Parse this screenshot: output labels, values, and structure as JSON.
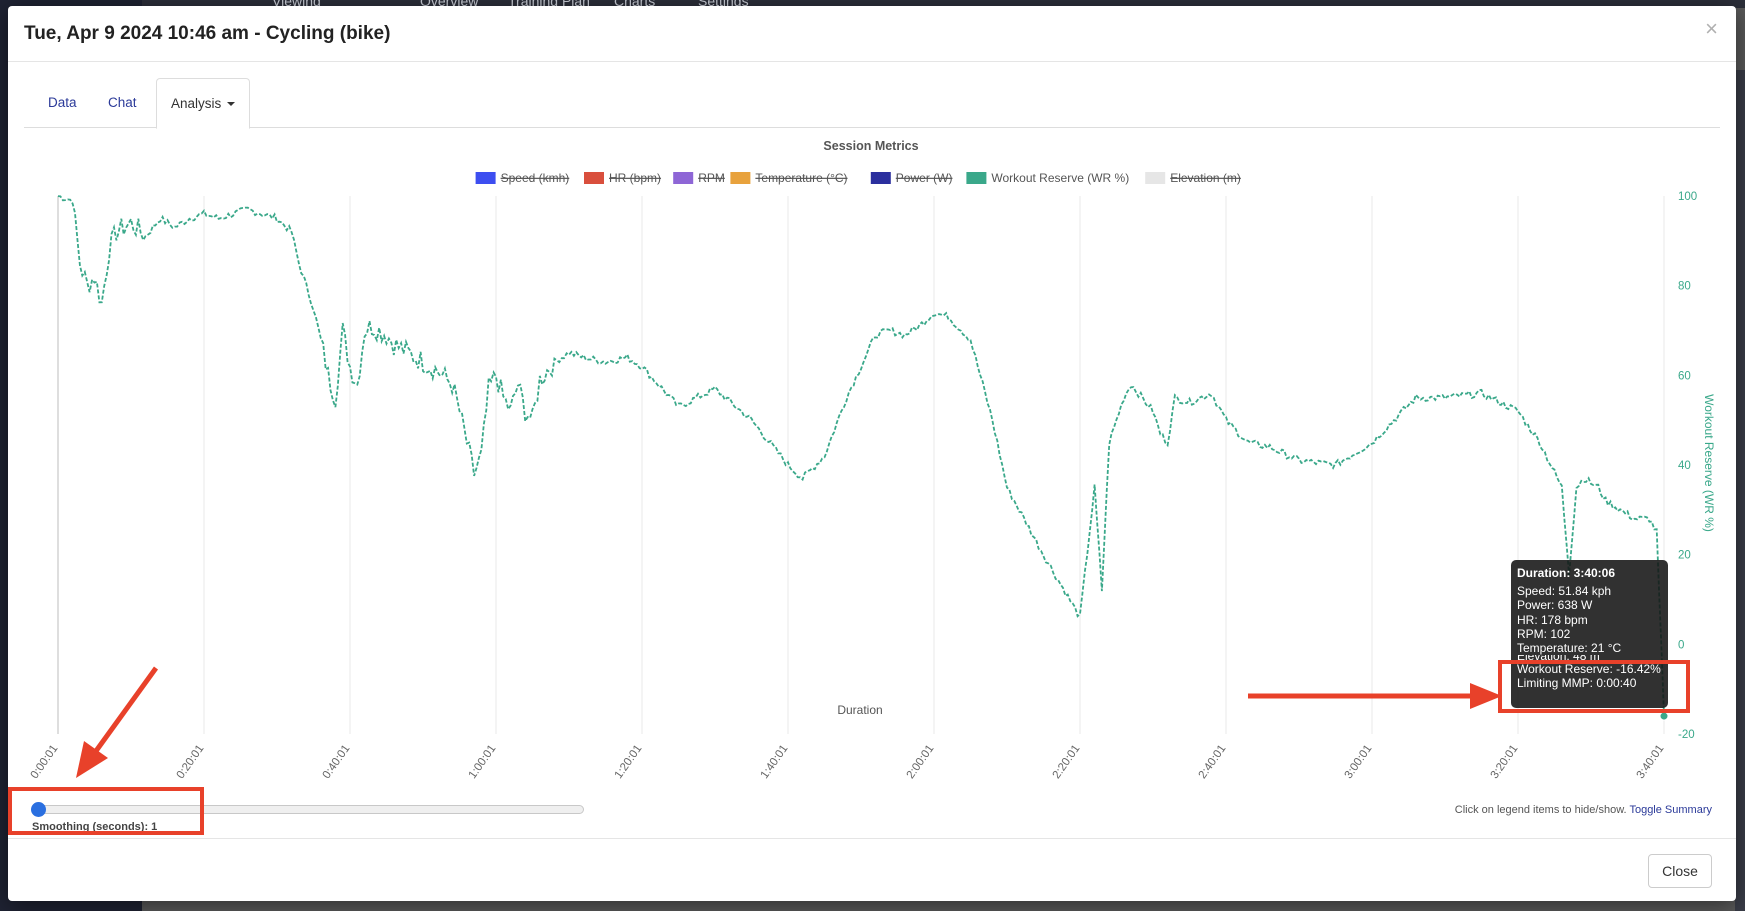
{
  "background_nav": [
    "Viewing",
    "Overview",
    "Training Plan",
    "Charts",
    "Settings"
  ],
  "modal": {
    "title": "Tue, Apr 9 2024 10:46 am - Cycling (bike)",
    "close_x": "×",
    "close_button": "Close"
  },
  "tabs": [
    {
      "label": "Data"
    },
    {
      "label": "Chat"
    },
    {
      "label": "Analysis"
    }
  ],
  "colors": {
    "workout_reserve": "#3aa88a",
    "annotation_red": "#e8412a",
    "link": "#2b3a99"
  },
  "chart_data": {
    "type": "line",
    "title": "Session Metrics",
    "xlabel": "Duration",
    "ylabel": "Workout Reserve (WR %)",
    "ylim": [
      -20,
      100
    ],
    "y_ticks": [
      "100",
      "80",
      "60",
      "40",
      "20",
      "0",
      "-20"
    ],
    "x_ticks": [
      "0:00:01",
      "0:20:01",
      "0:40:01",
      "1:00:01",
      "1:20:01",
      "1:40:01",
      "2:00:01",
      "2:20:01",
      "2:40:01",
      "3:00:01",
      "3:20:01",
      "3:40:01"
    ],
    "grid": "vertical",
    "legend_position": "top",
    "legend": [
      {
        "name": "Speed (kmh)",
        "color": "#3d4ef0",
        "hidden": true
      },
      {
        "name": "HR (bpm)",
        "color": "#d94f3d",
        "hidden": true
      },
      {
        "name": "RPM",
        "color": "#8e66d6",
        "hidden": true
      },
      {
        "name": "Temperature (°C)",
        "color": "#e8a23d",
        "hidden": true
      },
      {
        "name": "Power (W)",
        "color": "#2b2f9e",
        "hidden": true
      },
      {
        "name": "Workout Reserve (WR %)",
        "color": "#3aa88a",
        "hidden": false
      },
      {
        "name": "Elevation (m)",
        "color": "#e6e6e6",
        "hidden": true
      }
    ],
    "series": [
      {
        "name": "Workout Reserve (WR %)",
        "x_minutes": [
          0,
          2,
          3,
          4,
          5,
          6,
          7,
          8,
          10,
          12,
          14,
          16,
          18,
          20,
          22,
          24,
          26,
          28,
          30,
          32,
          33,
          34,
          35,
          36,
          37,
          38,
          39,
          40,
          41,
          42,
          43,
          44,
          45,
          46,
          48,
          50,
          52,
          54,
          55,
          56,
          57,
          58,
          59,
          60,
          61,
          62,
          63,
          64,
          65,
          66,
          68,
          70,
          72,
          75,
          78,
          80,
          85,
          90,
          95,
          100,
          102,
          105,
          108,
          110,
          112,
          114,
          116,
          118,
          120,
          122,
          125,
          128,
          130,
          135,
          140,
          142,
          143,
          144,
          145,
          146,
          147,
          148,
          149,
          150,
          151,
          152,
          153,
          155,
          158,
          160,
          163,
          166,
          170,
          175,
          180,
          183,
          186,
          190,
          195,
          200,
          203,
          206,
          207,
          208,
          209,
          210,
          211,
          212,
          214,
          216,
          218,
          219,
          220
        ],
        "y": [
          100,
          99,
          85,
          80,
          82,
          76,
          88,
          92,
          94,
          91,
          95,
          93,
          95,
          96,
          95,
          96,
          97,
          96,
          95,
          92,
          85,
          80,
          75,
          68,
          60,
          55,
          70,
          62,
          58,
          70,
          71,
          70,
          69,
          67,
          65,
          63,
          61,
          58,
          52,
          45,
          38,
          42,
          57,
          60,
          55,
          52,
          58,
          52,
          50,
          59,
          63,
          65,
          64,
          63,
          64,
          62,
          53,
          57,
          50,
          40,
          37,
          42,
          55,
          62,
          69,
          70,
          69,
          71,
          74,
          73,
          68,
          50,
          35,
          20,
          6,
          35,
          12,
          45,
          50,
          55,
          58,
          56,
          54,
          52,
          47,
          45,
          55,
          54,
          56,
          50,
          45,
          44,
          41,
          40,
          45,
          50,
          55,
          55,
          56,
          52,
          45,
          35,
          16,
          35,
          37,
          36,
          35,
          32,
          30,
          28,
          28,
          25,
          -16
        ]
      }
    ]
  },
  "tooltip": {
    "title": "Duration: 3:40:06",
    "lines": [
      "Speed: 51.84 kph",
      "Power: 638 W",
      "HR: 178 bpm",
      "RPM: 102",
      "Temperature: 21 °C",
      "Elevation: 48 m",
      "Workout Reserve: -16.42%",
      "Limiting MMP: 0:00:40"
    ]
  },
  "smoothing": {
    "label": "Smoothing (seconds): 1",
    "value": 1,
    "min": 1,
    "max": 60
  },
  "legend_hint": {
    "text": "Click on legend items to hide/show.",
    "toggle_link": "Toggle Summary"
  }
}
